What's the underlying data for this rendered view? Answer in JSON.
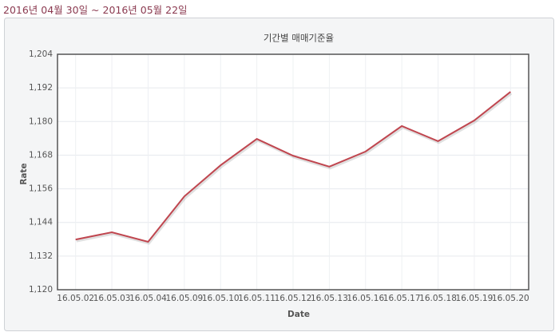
{
  "header": "2016년 04월 30일 ~ 2016년 05월 22일",
  "chart_data": {
    "type": "line",
    "title": "기간별 매매기준율",
    "x_label": "Date",
    "y_label": "Rate",
    "categories": [
      "16.05.02",
      "16.05.03",
      "16.05.04",
      "16.05.09",
      "16.05.10",
      "16.05.11",
      "16.05.12",
      "16.05.13",
      "16.05.16",
      "16.05.17",
      "16.05.18",
      "16.05.19",
      "16.05.20"
    ],
    "values": [
      1137.9,
      1140.5,
      1137.1,
      1153.3,
      1164.4,
      1173.8,
      1167.8,
      1163.9,
      1169.3,
      1178.4,
      1173.0,
      1180.4,
      1190.6
    ],
    "color": "#c0464f",
    "ylim": [
      1120,
      1204
    ],
    "yticks": [
      {
        "value": 1120,
        "label": "1,120"
      },
      {
        "value": 1132,
        "label": "1,132"
      },
      {
        "value": 1144,
        "label": "1,144"
      },
      {
        "value": 1156,
        "label": "1,156"
      },
      {
        "value": 1168,
        "label": "1,168"
      },
      {
        "value": 1180,
        "label": "1,180"
      },
      {
        "value": 1192,
        "label": "1,192"
      },
      {
        "value": 1204,
        "label": "1,204"
      }
    ],
    "grid": true
  }
}
